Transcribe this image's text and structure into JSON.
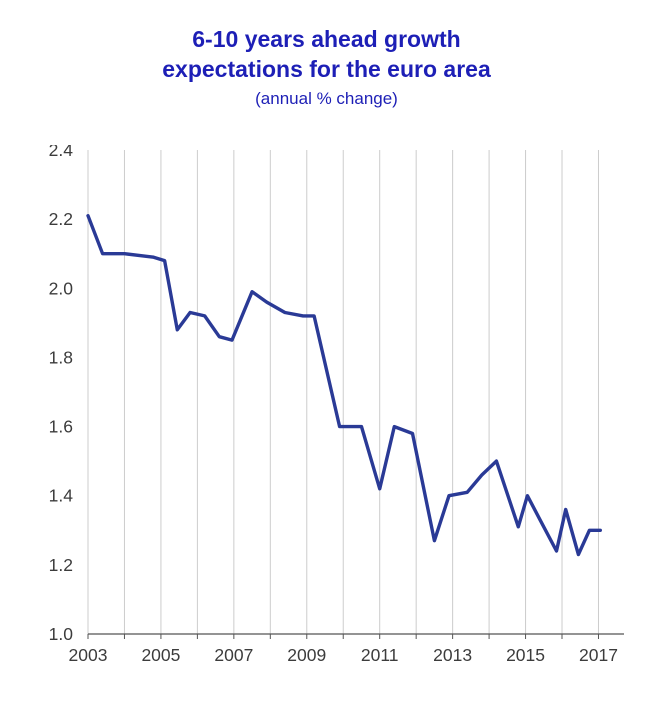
{
  "colors": {
    "title": "#1d1fb6",
    "line": "#2a3a96",
    "grid": "#cccccc",
    "axis": "#555555",
    "tick": "#555555",
    "text": "#3c3c3c",
    "background": "#ffffff"
  },
  "chart_data": {
    "type": "line",
    "title": "6-10 years ahead growth expectations for the euro area",
    "title_lines": [
      "6-10 years ahead growth",
      "expectations for the euro area"
    ],
    "subtitle": "(annual % change)",
    "xlabel": "",
    "ylabel": "",
    "legend": "none",
    "grid": "vertical-gridlines-only",
    "x_domain": [
      2003,
      2017.7
    ],
    "ylim": [
      1.0,
      2.4
    ],
    "x_gridlines": [
      2003,
      2004,
      2005,
      2006,
      2007,
      2008,
      2009,
      2010,
      2011,
      2012,
      2013,
      2014,
      2015,
      2016,
      2017
    ],
    "x_tick_labels": [
      "2003",
      "2005",
      "2007",
      "2009",
      "2011",
      "2013",
      "2015",
      "2017"
    ],
    "y_tick_labels": [
      "1.0",
      "1.2",
      "1.4",
      "1.6",
      "1.8",
      "2.0",
      "2.2",
      "2.4"
    ],
    "series": [
      {
        "name": "6-10 years ahead growth expectations for the euro area",
        "x": [
          2003.0,
          2003.4,
          2004.0,
          2004.8,
          2005.1,
          2005.45,
          2005.8,
          2006.2,
          2006.6,
          2006.95,
          2007.5,
          2007.9,
          2008.4,
          2008.9,
          2009.2,
          2009.9,
          2010.5,
          2011.0,
          2011.4,
          2011.9,
          2012.5,
          2012.9,
          2013.4,
          2013.8,
          2014.2,
          2014.8,
          2015.05,
          2015.4,
          2015.85,
          2016.1,
          2016.45,
          2016.75,
          2017.05
        ],
        "values": [
          2.21,
          2.1,
          2.1,
          2.09,
          2.08,
          1.88,
          1.93,
          1.92,
          1.86,
          1.85,
          1.99,
          1.96,
          1.93,
          1.92,
          1.92,
          1.6,
          1.6,
          1.42,
          1.6,
          1.58,
          1.27,
          1.4,
          1.41,
          1.46,
          1.5,
          1.31,
          1.4,
          1.33,
          1.24,
          1.36,
          1.23,
          1.3,
          1.3
        ]
      }
    ]
  }
}
